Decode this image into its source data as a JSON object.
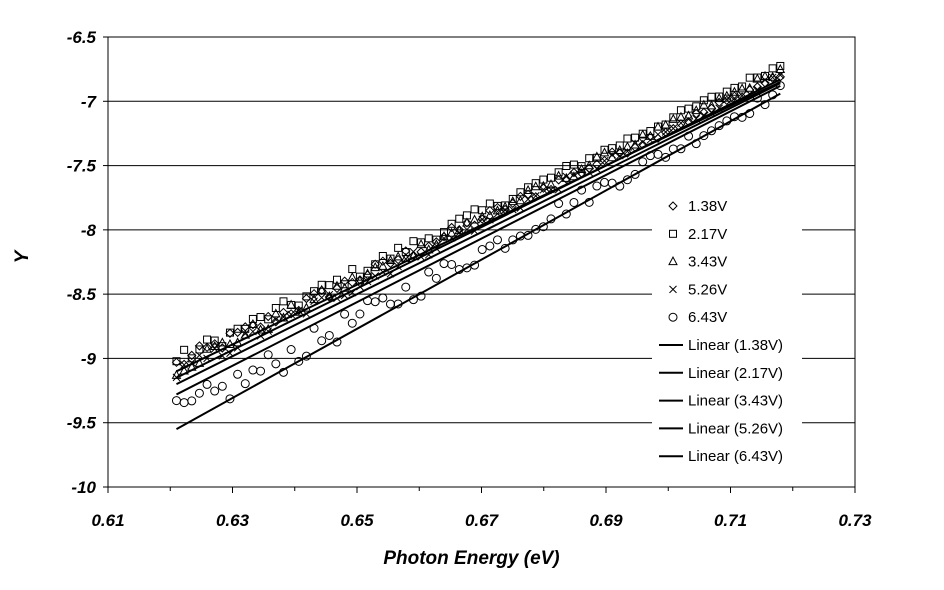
{
  "chart_data": {
    "type": "scatter",
    "title": "",
    "xlabel": "Photon Energy (eV)",
    "ylabel": "Y",
    "xlim": [
      0.61,
      0.73
    ],
    "ylim": [
      -10,
      -6.5
    ],
    "x_ticks": [
      0.61,
      0.63,
      0.65,
      0.67,
      0.69,
      0.71,
      0.73
    ],
    "x_tick_labels": [
      "0.61",
      "0.63",
      "0.65",
      "0.67",
      "0.69",
      "0.71",
      "0.73"
    ],
    "y_ticks": [
      -6.5,
      -7,
      -7.5,
      -8,
      -8.5,
      -9,
      -9.5,
      -10
    ],
    "y_tick_labels": [
      "-6.5",
      "-7",
      "-7.5",
      "-8",
      "-8.5",
      "-9",
      "-9.5",
      "-10"
    ],
    "grid": "horizontal",
    "legend_position": "right",
    "series": [
      {
        "name": "1.38V",
        "marker": "diamond",
        "x_range": [
          0.621,
          0.718
        ],
        "y_start": -9.05,
        "y_end": -6.8,
        "noise": 0.04,
        "fit": {
          "name": "Linear (1.38V)",
          "y_start": -9.1,
          "y_end": -6.85
        }
      },
      {
        "name": "2.17V",
        "marker": "square",
        "x_range": [
          0.621,
          0.718
        ],
        "y_start": -9.02,
        "y_end": -6.72,
        "noise": 0.04,
        "fit": {
          "name": "Linear (2.17V)",
          "y_start": -9.15,
          "y_end": -6.83
        }
      },
      {
        "name": "3.43V",
        "marker": "triangle",
        "x_range": [
          0.621,
          0.718
        ],
        "y_start": -9.08,
        "y_end": -6.76,
        "noise": 0.04,
        "fit": {
          "name": "Linear (3.43V)",
          "y_start": -9.2,
          "y_end": -6.86
        }
      },
      {
        "name": "5.26V",
        "marker": "x",
        "x_range": [
          0.621,
          0.718
        ],
        "y_start": -9.12,
        "y_end": -6.8,
        "noise": 0.04,
        "fit": {
          "name": "Linear (5.26V)",
          "y_start": -9.28,
          "y_end": -6.88
        }
      },
      {
        "name": "6.43V",
        "marker": "circle",
        "x_range": [
          0.621,
          0.718
        ],
        "y_start": -9.45,
        "y_end": -6.92,
        "noise": 0.08,
        "fit": {
          "name": "Linear (6.43V)",
          "y_start": -9.55,
          "y_end": -6.94
        }
      }
    ],
    "points_per_series": 80
  }
}
